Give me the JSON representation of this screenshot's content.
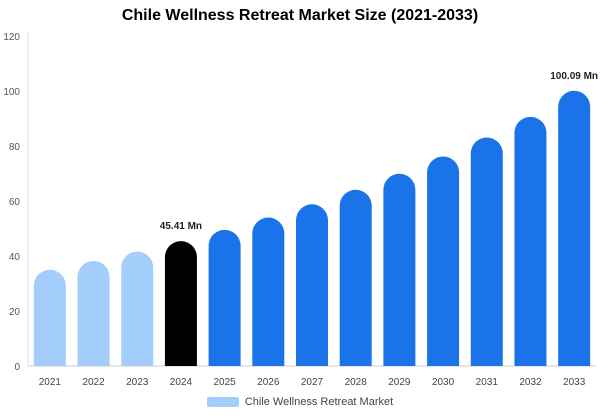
{
  "chart_data": {
    "type": "bar",
    "title": "Chile Wellness Retreat Market Size (2021-2033)",
    "xlabel": "",
    "ylabel": "",
    "categories": [
      "2021",
      "2022",
      "2023",
      "2024",
      "2025",
      "2026",
      "2027",
      "2028",
      "2029",
      "2030",
      "2031",
      "2032",
      "2033"
    ],
    "series": [
      {
        "name": "Chile Wellness Retreat Market",
        "values": [
          35.0,
          38.2,
          41.6,
          45.41,
          49.5,
          54.0,
          58.8,
          64.1,
          69.9,
          76.2,
          83.1,
          90.6,
          100.09
        ]
      }
    ],
    "bar_colors": [
      "#a3cdfb",
      "#a3cdfb",
      "#a3cdfb",
      "#000000",
      "#1a73e8",
      "#1a73e8",
      "#1a73e8",
      "#1a73e8",
      "#1a73e8",
      "#1a73e8",
      "#1a73e8",
      "#1a73e8",
      "#1a73e8"
    ],
    "data_labels": [
      {
        "index": 3,
        "text": "45.41 Mn"
      },
      {
        "index": 12,
        "text": "100.09 Mn"
      }
    ],
    "yticks": [
      0,
      20,
      40,
      60,
      80,
      100,
      120
    ],
    "ylim": [
      0,
      120
    ],
    "grid": false,
    "legend": {
      "placement": "bottom",
      "label": "Chile Wellness Retreat Market",
      "color": "#a3cdfb"
    }
  }
}
